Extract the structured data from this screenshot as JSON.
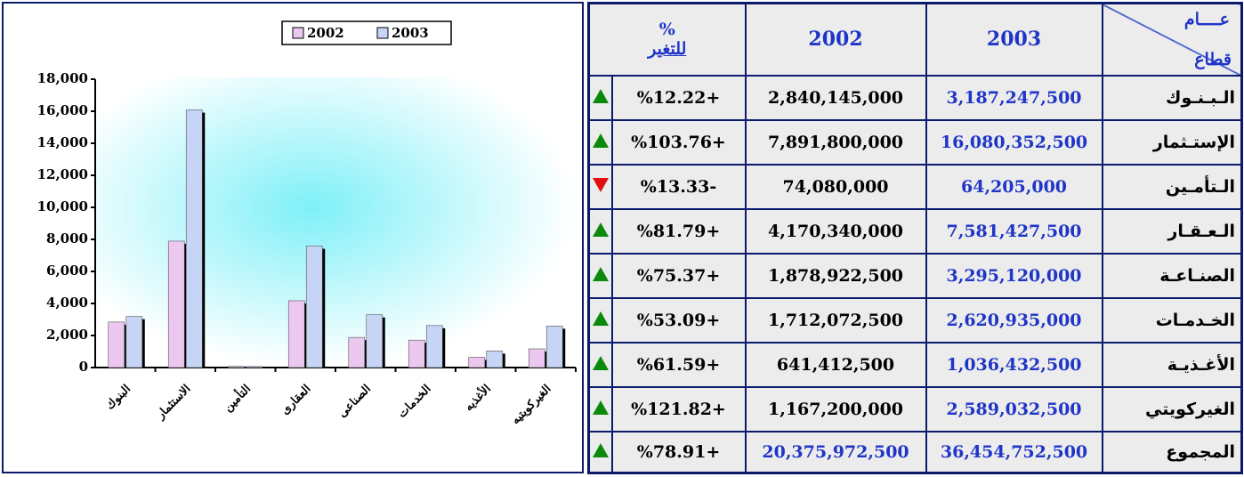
{
  "chart_data": {
    "type": "bar",
    "categories": [
      "البنوك",
      "الاستثمار",
      "التأمين",
      "العقارى",
      "الصناعى",
      "الخدمات",
      "الأغذيه",
      "الغيركويتيه"
    ],
    "series": [
      {
        "name": "2002",
        "color": "#ecc8f0",
        "values": [
          2840,
          7892,
          74,
          4170,
          1879,
          1712,
          641,
          1167
        ]
      },
      {
        "name": "2003",
        "color": "#c6d4f6",
        "values": [
          3187,
          16080,
          64,
          7581,
          3295,
          2621,
          1036,
          2589
        ]
      }
    ],
    "ylim": [
      0,
      18000
    ],
    "yticks": [
      0,
      {
        "value": 2000,
        "label": "2,000"
      },
      {
        "value": 4000,
        "label": "4,000"
      },
      {
        "value": 6000,
        "label": "6,000"
      },
      {
        "value": 8000,
        "label": "8,000"
      },
      {
        "value": 10000,
        "label": "10,000"
      },
      {
        "value": 12000,
        "label": "12,000"
      },
      {
        "value": 14000,
        "label": "14,000"
      },
      {
        "value": 16000,
        "label": "16,000"
      },
      {
        "value": 18000,
        "label": "18,000"
      }
    ],
    "legend": "top"
  },
  "table": {
    "header": {
      "year": "عــــام",
      "sector": "قطاع",
      "y2003": "2003",
      "y2002": "2002",
      "pct_sign": "%",
      "pct": "للتغير"
    },
    "rows": [
      {
        "sector": "الـبـنـوك",
        "v2003": "3,187,247,500",
        "v2002": "2,840,145,000",
        "change": "%12.22+",
        "trend": "up"
      },
      {
        "sector": "الإستـثمار",
        "v2003": "16,080,352,500",
        "v2002": "7,891,800,000",
        "change": "%103.76+",
        "trend": "up"
      },
      {
        "sector": "الـتأمـين",
        "v2003": "64,205,000",
        "v2002": "74,080,000",
        "change": "%13.33-",
        "trend": "down"
      },
      {
        "sector": "الـعـقـار",
        "v2003": "7,581,427,500",
        "v2002": "4,170,340,000",
        "change": "%81.79+",
        "trend": "up"
      },
      {
        "sector": "الصنـاعـة",
        "v2003": "3,295,120,000",
        "v2002": "1,878,922,500",
        "change": "%75.37+",
        "trend": "up"
      },
      {
        "sector": "الخـدمـات",
        "v2003": "2,620,935,000",
        "v2002": "1,712,072,500",
        "change": "%53.09+",
        "trend": "up"
      },
      {
        "sector": "الأغـذيـة",
        "v2003": "1,036,432,500",
        "v2002": "641,412,500",
        "change": "%61.59+",
        "trend": "up"
      },
      {
        "sector": "الغيركويتي",
        "v2003": "2,589,032,500",
        "v2002": "1,167,200,000",
        "change": "%121.82+",
        "trend": "up"
      }
    ],
    "total": {
      "sector": "المجموع",
      "v2003": "36,454,752,500",
      "v2002": "20,375,972,500",
      "change": "%78.91+",
      "trend": "up"
    }
  }
}
